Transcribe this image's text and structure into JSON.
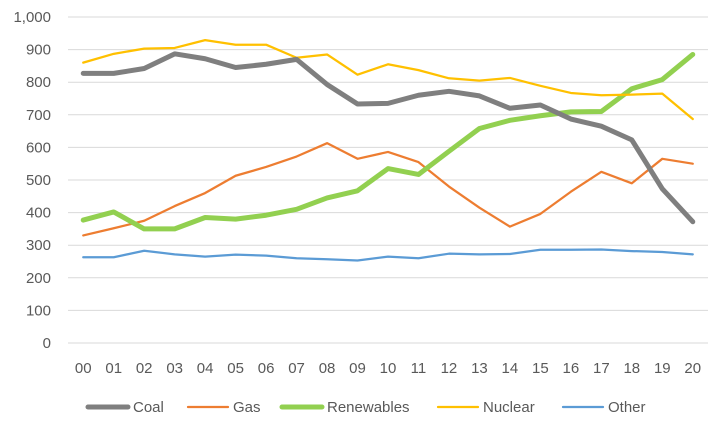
{
  "chart_data": {
    "type": "line",
    "title": "",
    "xlabel": "",
    "ylabel": "",
    "categories": [
      "00",
      "01",
      "02",
      "03",
      "04",
      "05",
      "06",
      "07",
      "08",
      "09",
      "10",
      "11",
      "12",
      "13",
      "14",
      "15",
      "16",
      "17",
      "18",
      "19",
      "20"
    ],
    "ylim": [
      0,
      1000
    ],
    "yticks": [
      0,
      100,
      200,
      300,
      400,
      500,
      600,
      700,
      800,
      900,
      1000
    ],
    "ytick_labels": [
      "0",
      "100",
      "200",
      "300",
      "400",
      "500",
      "600",
      "700",
      "800",
      "900",
      "1,000"
    ],
    "grid": true,
    "legend_position": "bottom",
    "series": [
      {
        "name": "Coal",
        "color": "#7f7f7f",
        "width": "thick",
        "values": [
          827,
          827,
          842,
          887,
          872,
          845,
          855,
          870,
          793,
          733,
          735,
          760,
          772,
          758,
          720,
          730,
          687,
          665,
          623,
          473,
          372
        ]
      },
      {
        "name": "Gas",
        "color": "#ed7d31",
        "width": "thin",
        "values": [
          330,
          352,
          375,
          420,
          460,
          513,
          540,
          572,
          613,
          565,
          586,
          555,
          480,
          415,
          357,
          396,
          464,
          525,
          490,
          565,
          550
        ]
      },
      {
        "name": "Renewables",
        "color": "#92d050",
        "width": "thick",
        "values": [
          377,
          402,
          350,
          350,
          385,
          380,
          392,
          410,
          445,
          467,
          535,
          517,
          588,
          658,
          683,
          697,
          709,
          710,
          780,
          808,
          885
        ]
      },
      {
        "name": "Nuclear",
        "color": "#ffc000",
        "width": "thin",
        "values": [
          860,
          887,
          903,
          905,
          929,
          915,
          915,
          875,
          885,
          823,
          855,
          837,
          812,
          805,
          813,
          789,
          767,
          760,
          762,
          765,
          687
        ]
      },
      {
        "name": "Other",
        "color": "#5b9bd5",
        "width": "thin",
        "values": [
          263,
          263,
          283,
          272,
          265,
          271,
          268,
          260,
          257,
          253,
          265,
          260,
          274,
          272,
          273,
          286,
          286,
          287,
          282,
          279,
          272
        ]
      }
    ]
  }
}
